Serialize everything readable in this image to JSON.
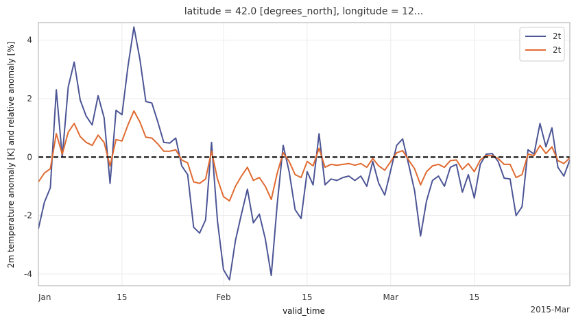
{
  "chart_data": {
    "type": "line",
    "title": "latitude = 42.0 [degrees_north], longitude = 12...",
    "xlabel": "valid_time",
    "ylabel": "2m temperature anomaly [K] and relative anomaly [%]",
    "x_start": "2015-01-01",
    "x_end": "2015-03-31",
    "x_ticks": [
      {
        "date": "2015-01-01",
        "label": "Jan"
      },
      {
        "date": "2015-01-15",
        "label": "15"
      },
      {
        "date": "2015-02-01",
        "label": "Feb"
      },
      {
        "date": "2015-02-15",
        "label": "15"
      },
      {
        "date": "2015-03-01",
        "label": "Mar"
      },
      {
        "date": "2015-03-15",
        "label": "15"
      }
    ],
    "x_offset_label": "2015-Mar",
    "ylim": [
      -4.4,
      4.6
    ],
    "y_ticks": [
      -4,
      -2,
      0,
      2,
      4
    ],
    "grid": true,
    "legend_position": "top-right",
    "reference_line": {
      "y": 0,
      "style": "dashed",
      "color": "#000000"
    },
    "series": [
      {
        "name": "2t",
        "color": "#4c5595",
        "values": [
          -2.45,
          -1.55,
          -1.05,
          2.3,
          0.0,
          2.4,
          3.25,
          1.95,
          1.4,
          1.1,
          2.1,
          1.35,
          -0.9,
          1.6,
          1.45,
          3.1,
          4.45,
          3.35,
          1.9,
          1.85,
          1.2,
          0.5,
          0.48,
          0.65,
          -0.3,
          -0.6,
          -2.4,
          -2.6,
          -2.15,
          0.5,
          -2.2,
          -3.85,
          -4.2,
          -2.85,
          -1.95,
          -1.1,
          -2.25,
          -1.95,
          -2.8,
          -4.05,
          -1.6,
          0.4,
          -0.5,
          -1.8,
          -2.1,
          -0.5,
          -0.95,
          0.8,
          -0.95,
          -0.75,
          -0.8,
          -0.7,
          -0.65,
          -0.8,
          -0.65,
          -1.0,
          -0.15,
          -0.9,
          -1.3,
          -0.45,
          0.4,
          0.62,
          -0.25,
          -1.15,
          -2.7,
          -1.5,
          -0.8,
          -0.65,
          -1.0,
          -0.35,
          -0.25,
          -1.2,
          -0.6,
          -1.4,
          -0.25,
          0.1,
          0.12,
          -0.15,
          -0.72,
          -0.75,
          -2.0,
          -1.7,
          0.25,
          0.1,
          1.15,
          0.35,
          1.0,
          -0.35,
          -0.65,
          -0.1
        ]
      },
      {
        "name": "2t",
        "color": "#e06a30",
        "values": [
          -0.85,
          -0.55,
          -0.4,
          0.8,
          0.1,
          0.85,
          1.15,
          0.7,
          0.5,
          0.4,
          0.75,
          0.5,
          -0.3,
          0.6,
          0.55,
          1.1,
          1.58,
          1.2,
          0.68,
          0.65,
          0.45,
          0.2,
          0.2,
          0.25,
          -0.1,
          -0.2,
          -0.85,
          -0.9,
          -0.75,
          0.2,
          -0.75,
          -1.35,
          -1.5,
          -1.0,
          -0.65,
          -0.35,
          -0.8,
          -0.7,
          -1.0,
          -1.45,
          -0.55,
          0.15,
          -0.15,
          -0.6,
          -0.7,
          -0.15,
          -0.3,
          0.3,
          -0.35,
          -0.25,
          -0.28,
          -0.25,
          -0.22,
          -0.28,
          -0.22,
          -0.35,
          -0.05,
          -0.3,
          -0.45,
          -0.15,
          0.15,
          0.22,
          -0.1,
          -0.4,
          -0.95,
          -0.5,
          -0.3,
          -0.25,
          -0.35,
          -0.12,
          -0.1,
          -0.42,
          -0.22,
          -0.5,
          -0.1,
          0.05,
          0.05,
          -0.05,
          -0.25,
          -0.25,
          -0.7,
          -0.6,
          0.1,
          0.05,
          0.4,
          0.12,
          0.35,
          -0.12,
          -0.22,
          -0.03
        ]
      }
    ]
  }
}
